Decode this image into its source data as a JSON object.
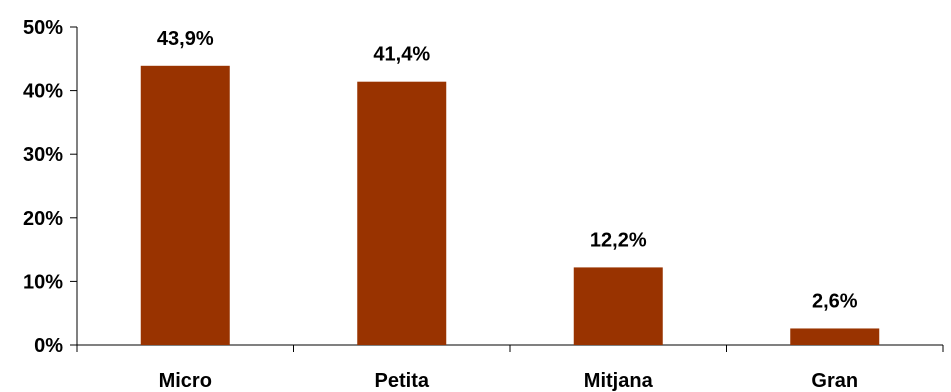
{
  "chart_data": {
    "type": "bar",
    "title": "",
    "xlabel": "",
    "ylabel": "",
    "categories": [
      "Micro",
      "Petita",
      "Mitjana",
      "Gran"
    ],
    "values": [
      43.9,
      41.4,
      12.2,
      2.6
    ],
    "data_labels": [
      "43,9%",
      "41,4%",
      "12,2%",
      "2,6%"
    ],
    "ylim": [
      0,
      50
    ],
    "y_ticks": [
      0,
      10,
      20,
      30,
      40,
      50
    ],
    "y_tick_labels": [
      "0%",
      "10%",
      "20%",
      "30%",
      "40%",
      "50%"
    ],
    "grid": false,
    "legend": "none",
    "colors": {
      "bar": "#993300",
      "axis": "#000000",
      "text": "#000000"
    }
  }
}
